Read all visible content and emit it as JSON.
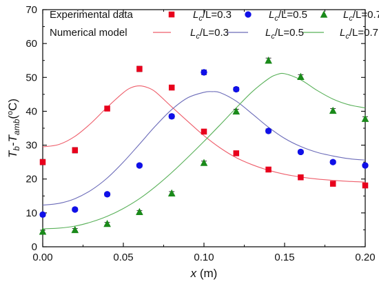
{
  "chart_data": {
    "type": "scatter",
    "xlabel": {
      "main": "x",
      "unit": " (m)"
    },
    "ylabel": {
      "base1": "T",
      "sub1": "b",
      "sep": "-",
      "base2": "T",
      "sub2": "amb",
      "unit_open": "(",
      "unit_sup": "o",
      "unit_rest": "C)"
    },
    "xlim": [
      0,
      0.2
    ],
    "ylim": [
      0,
      70
    ],
    "x_ticks": [
      0.0,
      0.05,
      0.1,
      0.15,
      0.2
    ],
    "x_tick_labels": [
      "0.00",
      "0.05",
      "0.10",
      "0.15",
      "0.20"
    ],
    "y_ticks": [
      0,
      10,
      20,
      30,
      40,
      50,
      60,
      70
    ],
    "y_tick_labels": [
      "0",
      "10",
      "20",
      "30",
      "40",
      "50",
      "60",
      "70"
    ],
    "grid": false,
    "legend_position": "top",
    "legend": {
      "experimental_title": "Experimental data",
      "numerical_title": "Numerical model",
      "label_parts": {
        "base": "L",
        "sub": "c",
        "mid": "/L="
      }
    },
    "series": [
      {
        "ratio": "0.3",
        "color": "#e8001c",
        "marker": "square",
        "line_color": "#ee5d6a",
        "x": [
          0.0,
          0.02,
          0.04,
          0.06,
          0.08,
          0.1,
          0.12,
          0.14,
          0.16,
          0.18,
          0.2
        ],
        "y": [
          25.0,
          28.5,
          40.8,
          52.5,
          47.0,
          34.0,
          27.6,
          22.8,
          20.5,
          18.6,
          18.1
        ],
        "error": [
          0.8,
          0.8,
          0.7,
          0.8,
          0.7,
          0.7,
          0.6,
          0.6,
          0.6,
          0.6,
          0.6
        ],
        "model_x": [
          0.0,
          0.01,
          0.02,
          0.03,
          0.04,
          0.05,
          0.055,
          0.06,
          0.065,
          0.07,
          0.08,
          0.09,
          0.1,
          0.11,
          0.12,
          0.13,
          0.14,
          0.15,
          0.16,
          0.17,
          0.18,
          0.19,
          0.2
        ],
        "model_y": [
          29.5,
          30.2,
          32.6,
          36.5,
          41.2,
          45.5,
          47.0,
          47.5,
          47.0,
          45.7,
          41.3,
          37.0,
          32.8,
          29.2,
          26.3,
          24.2,
          22.6,
          21.4,
          20.6,
          20.0,
          19.6,
          19.3,
          19.1
        ]
      },
      {
        "ratio": "0.5",
        "color": "#1010e8",
        "marker": "circle",
        "line_color": "#6a6ab8",
        "x": [
          0.0,
          0.02,
          0.04,
          0.06,
          0.08,
          0.1,
          0.12,
          0.14,
          0.16,
          0.18,
          0.2
        ],
        "y": [
          9.5,
          11.0,
          15.5,
          24.0,
          38.5,
          51.5,
          46.5,
          34.2,
          28.0,
          25.0,
          24.0
        ],
        "error": [
          0.5,
          0.5,
          0.5,
          0.5,
          0.6,
          0.7,
          0.6,
          0.6,
          0.5,
          0.5,
          0.5
        ],
        "model_x": [
          0.0,
          0.01,
          0.02,
          0.03,
          0.04,
          0.05,
          0.06,
          0.07,
          0.08,
          0.09,
          0.1,
          0.105,
          0.11,
          0.12,
          0.13,
          0.14,
          0.15,
          0.16,
          0.17,
          0.18,
          0.19,
          0.2
        ],
        "model_y": [
          12.3,
          12.8,
          14.2,
          16.7,
          20.3,
          25.0,
          30.3,
          35.7,
          40.5,
          44.0,
          45.6,
          45.8,
          45.5,
          43.0,
          39.2,
          35.3,
          32.0,
          29.6,
          27.9,
          26.8,
          26.0,
          25.6
        ]
      },
      {
        "ratio": "0.7",
        "color": "#1a8a1a",
        "marker": "triangle",
        "line_color": "#58b058",
        "x": [
          0.0,
          0.02,
          0.04,
          0.06,
          0.08,
          0.1,
          0.12,
          0.14,
          0.16,
          0.18,
          0.2
        ],
        "y": [
          4.5,
          5.0,
          6.8,
          10.3,
          15.8,
          24.8,
          40.0,
          55.0,
          50.2,
          40.2,
          37.8
        ],
        "error": [
          0.4,
          0.4,
          0.4,
          0.4,
          0.5,
          0.5,
          0.6,
          0.7,
          0.6,
          0.6,
          0.6
        ],
        "model_x": [
          0.0,
          0.01,
          0.02,
          0.03,
          0.04,
          0.05,
          0.06,
          0.07,
          0.08,
          0.09,
          0.1,
          0.11,
          0.12,
          0.13,
          0.14,
          0.145,
          0.15,
          0.16,
          0.17,
          0.18,
          0.19,
          0.2
        ],
        "model_y": [
          5.3,
          5.5,
          6.1,
          7.3,
          9.0,
          11.3,
          14.2,
          17.8,
          21.9,
          26.4,
          31.1,
          36.0,
          41.0,
          45.8,
          49.6,
          50.8,
          51.1,
          49.3,
          46.2,
          43.6,
          41.9,
          41.0
        ]
      }
    ]
  }
}
